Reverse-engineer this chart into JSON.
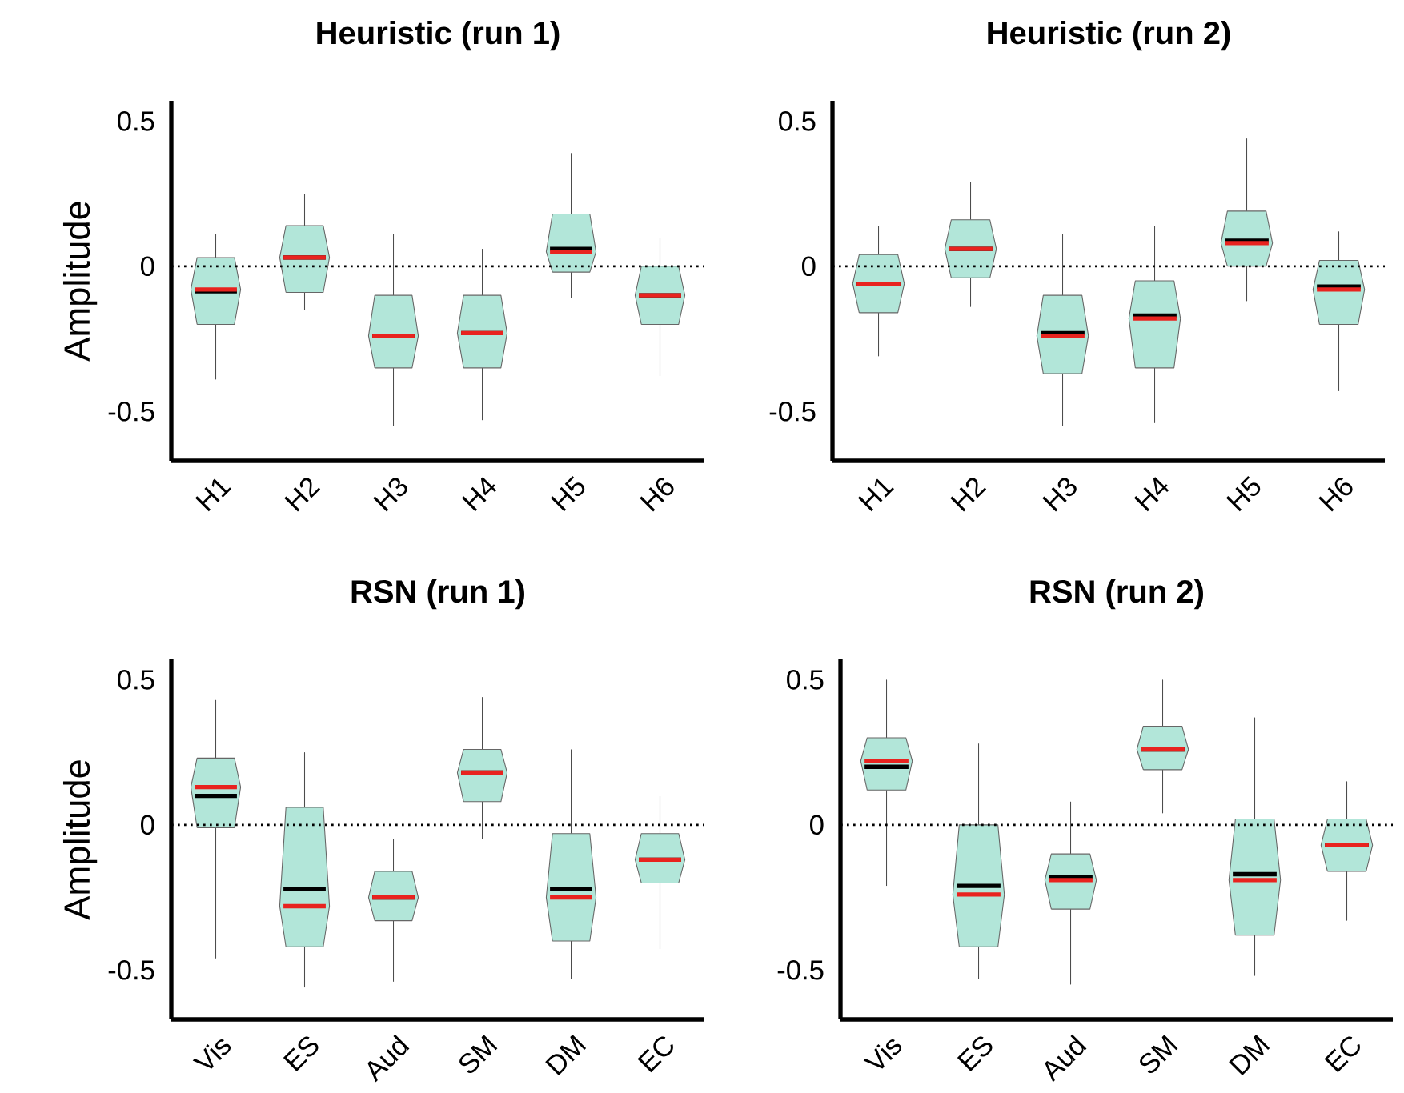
{
  "chart_data": [
    {
      "type": "box",
      "title": "Heuristic (run 1)",
      "ylabel": "Amplitude",
      "categories": [
        "H1",
        "H2",
        "H3",
        "H4",
        "H5",
        "H6"
      ],
      "color": "#b2e6d9",
      "ylim": [
        -0.67,
        0.57
      ],
      "yticks": [
        0.5,
        0,
        -0.5
      ],
      "ref_lines": [
        {
          "axis": "y",
          "value": 0,
          "line_style": "dotted"
        }
      ],
      "grid": false,
      "boxes": [
        {
          "low": -0.39,
          "q1": -0.2,
          "median": -0.08,
          "q3": 0.03,
          "high": 0.11,
          "mean": -0.086
        },
        {
          "low": -0.15,
          "q1": -0.09,
          "median": 0.03,
          "q3": 0.14,
          "high": 0.25,
          "mean": 0.03
        },
        {
          "low": -0.55,
          "q1": -0.35,
          "median": -0.24,
          "q3": -0.1,
          "high": 0.11,
          "mean": -0.24
        },
        {
          "low": -0.53,
          "q1": -0.35,
          "median": -0.23,
          "q3": -0.1,
          "high": 0.06,
          "mean": -0.23
        },
        {
          "low": -0.11,
          "q1": -0.02,
          "median": 0.05,
          "q3": 0.18,
          "high": 0.39,
          "mean": 0.06
        },
        {
          "low": -0.38,
          "q1": -0.2,
          "median": -0.1,
          "q3": 0.0,
          "high": 0.1,
          "mean": -0.1
        }
      ]
    },
    {
      "type": "box",
      "title": "Heuristic (run 2)",
      "categories": [
        "H1",
        "H2",
        "H3",
        "H4",
        "H5",
        "H6"
      ],
      "color": "#b2e6d9",
      "ylim": [
        -0.67,
        0.57
      ],
      "yticks": [
        0.5,
        0,
        -0.5
      ],
      "ref_lines": [
        {
          "axis": "y",
          "value": 0,
          "line_style": "dotted"
        }
      ],
      "grid": false,
      "boxes": [
        {
          "low": -0.31,
          "q1": -0.16,
          "median": -0.06,
          "q3": 0.04,
          "high": 0.14,
          "mean": -0.06
        },
        {
          "low": -0.14,
          "q1": -0.04,
          "median": 0.06,
          "q3": 0.16,
          "high": 0.29,
          "mean": 0.06
        },
        {
          "low": -0.55,
          "q1": -0.37,
          "median": -0.24,
          "q3": -0.1,
          "high": 0.11,
          "mean": -0.23
        },
        {
          "low": -0.54,
          "q1": -0.35,
          "median": -0.18,
          "q3": -0.05,
          "high": 0.14,
          "mean": -0.17
        },
        {
          "low": -0.12,
          "q1": 0.0,
          "median": 0.08,
          "q3": 0.19,
          "high": 0.44,
          "mean": 0.088
        },
        {
          "low": -0.43,
          "q1": -0.2,
          "median": -0.08,
          "q3": 0.02,
          "high": 0.12,
          "mean": -0.07
        }
      ]
    },
    {
      "type": "box",
      "title": "RSN (run 1)",
      "ylabel": "Amplitude",
      "categories": [
        "Vis",
        "ES",
        "Aud",
        "SM",
        "DM",
        "EC"
      ],
      "color": "#b2e6d9",
      "ylim": [
        -0.67,
        0.57
      ],
      "yticks": [
        0.5,
        0,
        -0.5
      ],
      "ref_lines": [
        {
          "axis": "y",
          "value": 0,
          "line_style": "dotted"
        }
      ],
      "grid": false,
      "boxes": [
        {
          "low": -0.46,
          "q1": -0.01,
          "median": 0.13,
          "q3": 0.23,
          "high": 0.43,
          "mean": 0.1
        },
        {
          "low": -0.56,
          "q1": -0.42,
          "median": -0.28,
          "q3": 0.06,
          "high": 0.25,
          "mean": -0.22
        },
        {
          "low": -0.54,
          "q1": -0.33,
          "median": -0.25,
          "q3": -0.16,
          "high": -0.05,
          "mean": -0.25
        },
        {
          "low": -0.05,
          "q1": 0.08,
          "median": 0.18,
          "q3": 0.26,
          "high": 0.44,
          "mean": 0.18
        },
        {
          "low": -0.53,
          "q1": -0.4,
          "median": -0.25,
          "q3": -0.03,
          "high": 0.26,
          "mean": -0.22
        },
        {
          "low": -0.43,
          "q1": -0.2,
          "median": -0.12,
          "q3": -0.03,
          "high": 0.1,
          "mean": -0.12
        }
      ]
    },
    {
      "type": "box",
      "title": "RSN (run 2)",
      "categories": [
        "Vis",
        "ES",
        "Aud",
        "SM",
        "DM",
        "EC"
      ],
      "color": "#b2e6d9",
      "ylim": [
        -0.67,
        0.57
      ],
      "yticks": [
        0.5,
        0,
        -0.5
      ],
      "ref_lines": [
        {
          "axis": "y",
          "value": 0,
          "line_style": "dotted"
        }
      ],
      "grid": false,
      "boxes": [
        {
          "low": -0.21,
          "q1": 0.12,
          "median": 0.22,
          "q3": 0.3,
          "high": 0.5,
          "mean": 0.2
        },
        {
          "low": -0.53,
          "q1": -0.42,
          "median": -0.24,
          "q3": 0.0,
          "high": 0.28,
          "mean": -0.21
        },
        {
          "low": -0.55,
          "q1": -0.29,
          "median": -0.19,
          "q3": -0.1,
          "high": 0.08,
          "mean": -0.18
        },
        {
          "low": 0.04,
          "q1": 0.19,
          "median": 0.26,
          "q3": 0.34,
          "high": 0.5,
          "mean": 0.26
        },
        {
          "low": -0.52,
          "q1": -0.38,
          "median": -0.19,
          "q3": 0.02,
          "high": 0.37,
          "mean": -0.17
        },
        {
          "low": -0.33,
          "q1": -0.16,
          "median": -0.07,
          "q3": 0.02,
          "high": 0.15,
          "mean": -0.07
        }
      ]
    }
  ]
}
